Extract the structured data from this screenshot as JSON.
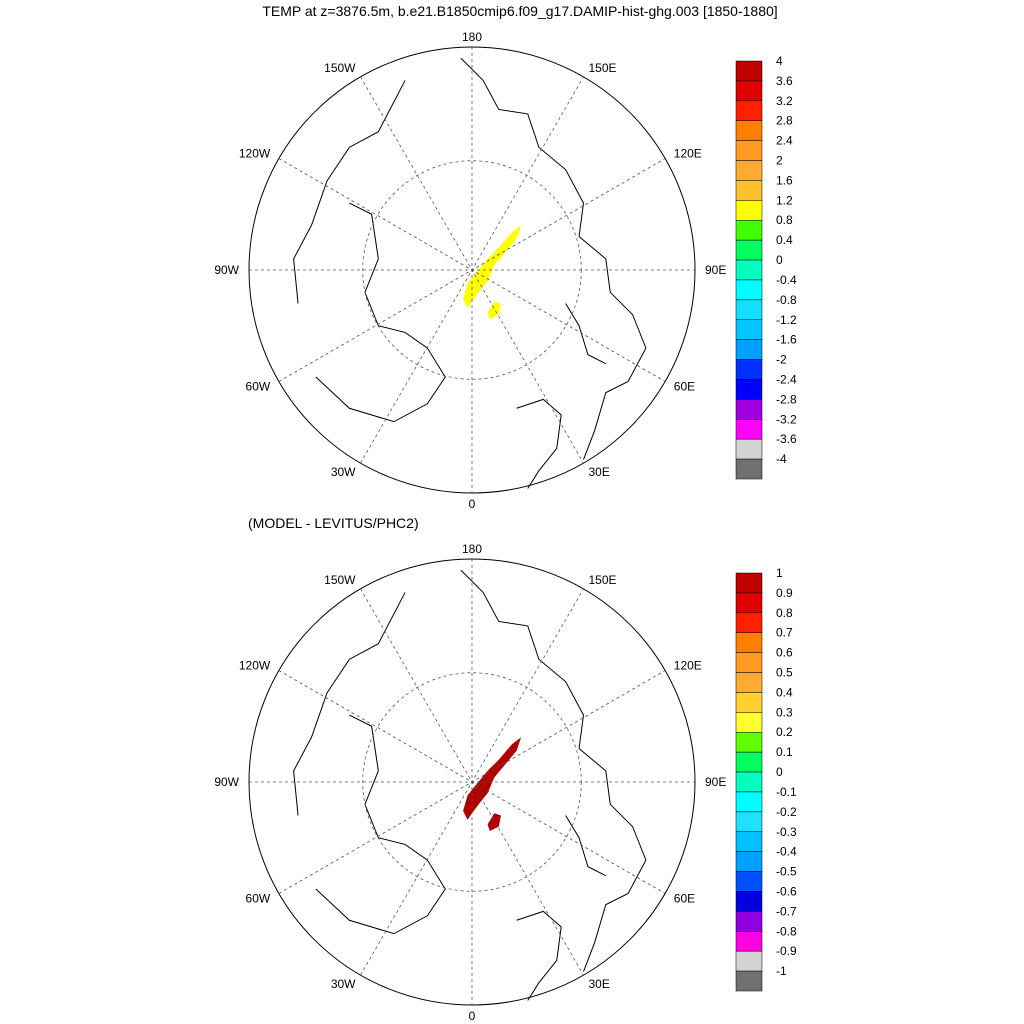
{
  "title": "TEMP at z=3876.5m, b.e21.B1850cmip6.f09_g17.DAMIP-hist-ghg.003 [1850-1880]",
  "panels": [
    {
      "subtitle": "",
      "lon_labels": {
        "n": "180",
        "ne1": "150E",
        "ne2": "120E",
        "e": "90E",
        "se1": "60E",
        "se2": "30E",
        "s": "0",
        "sw1": "30W",
        "sw2": "60W",
        "w": "90W",
        "nw1": "120W",
        "nw2": "150W"
      },
      "field_color": "#ffff00",
      "colorbar": {
        "labels": [
          "4",
          "3.6",
          "3.2",
          "2.8",
          "2.4",
          "2",
          "1.6",
          "1.2",
          "0.8",
          "0.4",
          "0",
          "-0.4",
          "-0.8",
          "-1.2",
          "-1.6",
          "-2",
          "-2.4",
          "-2.8",
          "-3.2",
          "-3.6",
          "-4"
        ],
        "colors": [
          "#c00000",
          "#e00000",
          "#ff2000",
          "#ff8000",
          "#ff9a20",
          "#ffaa30",
          "#ffc030",
          "#ffff00",
          "#40ff00",
          "#00ff60",
          "#00ffc0",
          "#00ffff",
          "#10e0ff",
          "#00c8ff",
          "#00a0ff",
          "#0030ff",
          "#0000ff",
          "#a000e0",
          "#ff00ff",
          "#d3d3d3",
          "#707070"
        ]
      }
    },
    {
      "subtitle": "(MODEL - LEVITUS/PHC2)",
      "lon_labels": {
        "n": "180",
        "ne1": "150E",
        "ne2": "120E",
        "e": "90E",
        "se1": "60E",
        "se2": "30E",
        "s": "0",
        "sw1": "30W",
        "sw2": "60W",
        "w": "90W",
        "nw1": "120W",
        "nw2": "150W"
      },
      "field_color": "#b00000",
      "colorbar": {
        "labels": [
          "1",
          "0.9",
          "0.8",
          "0.7",
          "0.6",
          "0.5",
          "0.4",
          "0.3",
          "0.2",
          "0.1",
          "0",
          "-0.1",
          "-0.2",
          "-0.3",
          "-0.4",
          "-0.5",
          "-0.6",
          "-0.7",
          "-0.8",
          "-0.9",
          "-1"
        ],
        "colors": [
          "#c00000",
          "#e00000",
          "#ff2000",
          "#ff8000",
          "#ff9a20",
          "#ffaa30",
          "#ffd030",
          "#ffff30",
          "#60ff00",
          "#00ff60",
          "#00ffc0",
          "#00ffff",
          "#20e0ff",
          "#00c0ff",
          "#00a0ff",
          "#0050ff",
          "#0000e0",
          "#9000e0",
          "#ff00e0",
          "#d3d3d3",
          "#707070"
        ]
      }
    }
  ]
}
